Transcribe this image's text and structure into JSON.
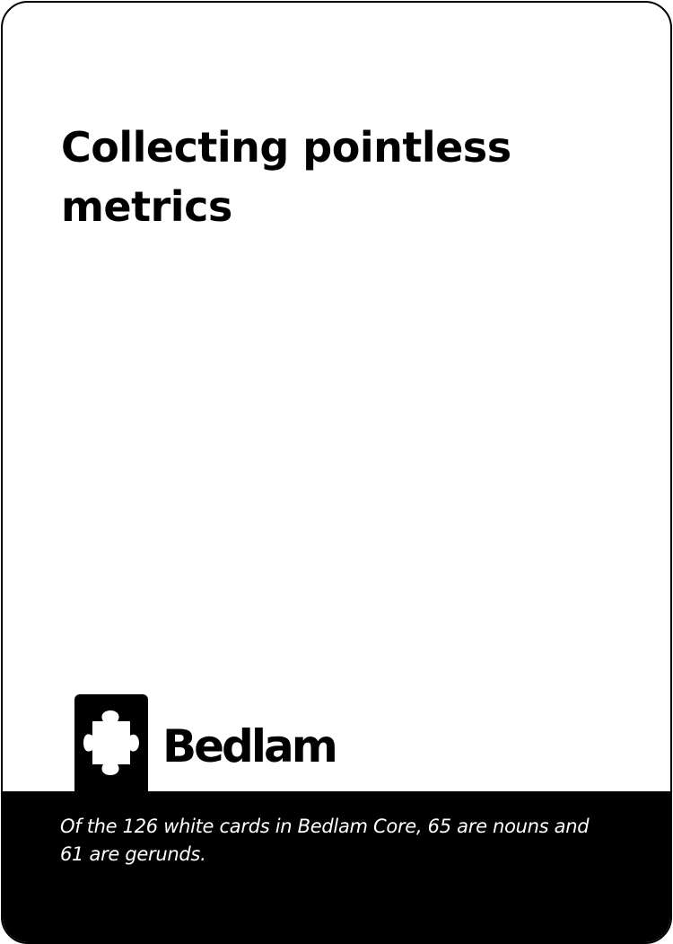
{
  "card": {
    "title": "Collecting pointless metrics",
    "footnote": "Of the 126 white cards in Bedlam Core, 65 are nouns and 61 are gerunds."
  },
  "logo": {
    "icon": "puzzle-piece-icon",
    "brand_name": "Bedlam"
  },
  "colors": {
    "card_background": "#ffffff",
    "footer_background": "#000000",
    "text_primary": "#000000",
    "text_inverse": "#ffffff"
  }
}
